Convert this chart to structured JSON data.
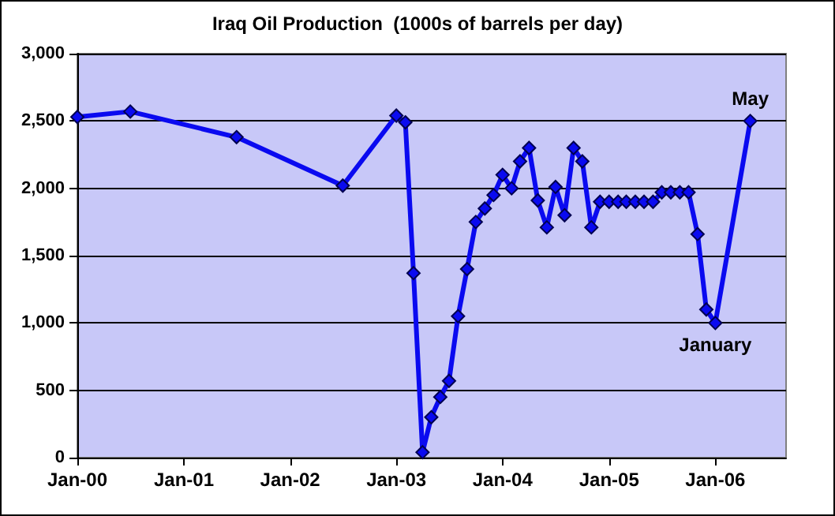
{
  "chart_data": {
    "type": "line",
    "title": "Iraq Oil Production  (1000s of barrels per day)",
    "x": [
      "2000-01",
      "2000-07",
      "2001-07",
      "2002-07",
      "2003-01",
      "2003-02",
      "2003-03",
      "2003-04",
      "2003-05",
      "2003-06",
      "2003-07",
      "2003-08",
      "2003-09",
      "2003-10",
      "2003-11",
      "2003-12",
      "2004-01",
      "2004-02",
      "2004-03",
      "2004-04",
      "2004-05",
      "2004-06",
      "2004-07",
      "2004-08",
      "2004-09",
      "2004-10",
      "2004-11",
      "2004-12",
      "2005-01",
      "2005-02",
      "2005-03",
      "2005-04",
      "2005-05",
      "2005-06",
      "2005-07",
      "2005-08",
      "2005-09",
      "2005-10",
      "2005-11",
      "2005-12",
      "2006-01",
      "2006-05"
    ],
    "series": [
      {
        "color": "#0a0af0",
        "values": [
          2530,
          2570,
          2380,
          2020,
          2540,
          2490,
          1370,
          40,
          300,
          450,
          570,
          1050,
          1400,
          1750,
          1850,
          1950,
          2100,
          2000,
          2200,
          2300,
          1910,
          1710,
          2010,
          1800,
          2300,
          2200,
          1710,
          1900,
          1900,
          1900,
          1900,
          1900,
          1900,
          1900,
          1970,
          1970,
          1970,
          1970,
          1660,
          1100,
          1000,
          2500
        ]
      }
    ],
    "xlim": [
      "2000-01",
      "2006-09"
    ],
    "xticks": [
      {
        "value": "2000-01",
        "label": "Jan-00"
      },
      {
        "value": "2001-01",
        "label": "Jan-01"
      },
      {
        "value": "2002-01",
        "label": "Jan-02"
      },
      {
        "value": "2003-01",
        "label": "Jan-03"
      },
      {
        "value": "2004-01",
        "label": "Jan-04"
      },
      {
        "value": "2005-01",
        "label": "Jan-05"
      },
      {
        "value": "2006-01",
        "label": "Jan-06"
      }
    ],
    "ylim": [
      0,
      3000
    ],
    "yticks": [
      {
        "value": 0,
        "label": "0"
      },
      {
        "value": 500,
        "label": "500"
      },
      {
        "value": 1000,
        "label": "1,000"
      },
      {
        "value": 1500,
        "label": "1,500"
      },
      {
        "value": 2000,
        "label": "2,000"
      },
      {
        "value": 2500,
        "label": "2,500"
      },
      {
        "value": 3000,
        "label": "3,000"
      }
    ],
    "annotations": [
      {
        "text": "May",
        "x": "2006-05",
        "y": 2500
      },
      {
        "text": "January",
        "x": "2006-01",
        "y": 1000
      }
    ],
    "grid": "y",
    "marker": "diamond",
    "line_style": "solid"
  }
}
